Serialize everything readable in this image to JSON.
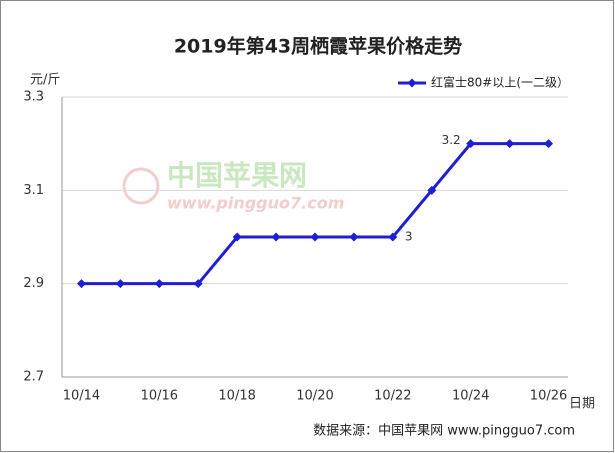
{
  "chart_data": {
    "type": "line",
    "title": "2019年第43周栖霞苹果价格走势",
    "y_label": "元/斤",
    "x_label": "日期",
    "source": "数据来源：中国苹果网 www.pingguo7.com",
    "watermark": "中国苹果网",
    "watermark_url": "www.pingguo7.com",
    "categories": [
      "10/14",
      null,
      "10/16",
      null,
      "10/18",
      null,
      "10/20",
      null,
      "10/22",
      null,
      "10/24",
      null,
      "10/26"
    ],
    "series": [
      {
        "name": "红富士80#以上(一二级）",
        "color": "#1f1fd1",
        "values": [
          2.9,
          2.9,
          2.9,
          2.9,
          3.0,
          3.0,
          3.0,
          3.0,
          3.0,
          3.1,
          3.2,
          3.2,
          3.2
        ],
        "value_labels": [
          null,
          null,
          null,
          null,
          null,
          null,
          null,
          null,
          "3",
          null,
          "3.2",
          null,
          null
        ]
      }
    ],
    "ylim": [
      2.7,
      3.3
    ],
    "yticks": [
      2.7,
      2.9,
      3.1,
      3.3
    ],
    "grid": true,
    "legend": "top-right"
  }
}
